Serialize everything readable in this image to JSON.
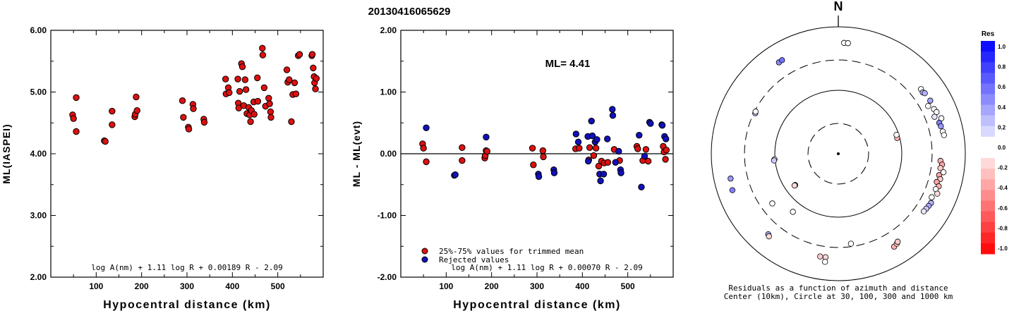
{
  "title": "20130416065629",
  "colors": {
    "red": "#dd1111",
    "blue": "#1111bb",
    "axis": "#000000"
  },
  "chart_data": [
    {
      "type": "scatter",
      "ylabel": "ML(IASPEI)",
      "xlabel": "Hypocentral distance (km)",
      "xlim": [
        0,
        600
      ],
      "ylim": [
        2.0,
        6.0
      ],
      "x_ticks": [
        100,
        200,
        300,
        400,
        500
      ],
      "y_ticks": [
        "2.00",
        "3.00",
        "4.00",
        "5.00",
        "6.00"
      ],
      "formula": "log A(nm) + 1.11 log R + 0.00189 R - 2.09",
      "series": [
        {
          "color": "red",
          "points": [
            [
              48,
              4.63
            ],
            [
              50,
              4.57
            ],
            [
              56,
              4.91
            ],
            [
              56,
              4.36
            ],
            [
              118,
              4.21
            ],
            [
              120,
              4.2
            ],
            [
              135,
              4.69
            ],
            [
              135,
              4.47
            ],
            [
              185,
              4.6
            ],
            [
              186,
              4.64
            ],
            [
              188,
              4.92
            ],
            [
              190,
              4.7
            ],
            [
              290,
              4.86
            ],
            [
              292,
              4.59
            ],
            [
              303,
              4.43
            ],
            [
              304,
              4.4
            ],
            [
              313,
              4.8
            ],
            [
              314,
              4.73
            ],
            [
              337,
              4.56
            ],
            [
              338,
              4.51
            ],
            [
              385,
              5.21
            ],
            [
              386,
              4.97
            ],
            [
              391,
              5.07
            ],
            [
              393,
              4.99
            ],
            [
              412,
              5.21
            ],
            [
              413,
              4.82
            ],
            [
              414,
              4.74
            ],
            [
              416,
              5.01
            ],
            [
              420,
              5.46
            ],
            [
              422,
              5.41
            ],
            [
              425,
              4.78
            ],
            [
              428,
              5.2
            ],
            [
              430,
              5.04
            ],
            [
              432,
              4.65
            ],
            [
              436,
              4.75
            ],
            [
              438,
              4.63
            ],
            [
              440,
              4.52
            ],
            [
              442,
              4.7
            ],
            [
              447,
              4.84
            ],
            [
              448,
              4.64
            ],
            [
              455,
              5.23
            ],
            [
              456,
              4.85
            ],
            [
              466,
              5.71
            ],
            [
              467,
              5.6
            ],
            [
              470,
              5.07
            ],
            [
              473,
              4.77
            ],
            [
              480,
              4.9
            ],
            [
              482,
              4.81
            ],
            [
              484,
              4.68
            ],
            [
              485,
              4.59
            ],
            [
              520,
              5.36
            ],
            [
              522,
              5.16
            ],
            [
              525,
              5.2
            ],
            [
              530,
              4.52
            ],
            [
              533,
              4.96
            ],
            [
              537,
              5.15
            ],
            [
              540,
              4.97
            ],
            [
              545,
              5.59
            ],
            [
              548,
              5.61
            ],
            [
              575,
              5.59
            ],
            [
              576,
              5.61
            ],
            [
              578,
              5.39
            ],
            [
              580,
              5.25
            ],
            [
              581,
              5.15
            ],
            [
              583,
              5.05
            ],
            [
              585,
              5.22
            ]
          ]
        }
      ]
    },
    {
      "type": "scatter",
      "ylabel": "ML - ML(evt)",
      "xlabel": "Hypocentral distance (km)",
      "xlim": [
        0,
        600
      ],
      "ylim": [
        -2.0,
        2.0
      ],
      "x_ticks": [
        100,
        200,
        300,
        400,
        500
      ],
      "y_ticks": [
        "-2.00",
        "-1.00",
        "0.00",
        "1.00",
        "2.00"
      ],
      "annotation": "ML=  4.41",
      "legend": [
        {
          "color": "red",
          "label": "25%-75% values for trimmed mean"
        },
        {
          "color": "blue",
          "label": "Rejected values"
        }
      ],
      "legend_position": "bottom-left",
      "formula": "log A(nm) + 1.11 log R + 0.00070 R - 2.09",
      "series": [
        {
          "color": "red",
          "points": [
            [
              48,
              0.16
            ],
            [
              50,
              0.09
            ],
            [
              56,
              -0.13
            ],
            [
              135,
              0.1
            ],
            [
              135,
              -0.11
            ],
            [
              185,
              -0.07
            ],
            [
              186,
              -0.03
            ],
            [
              188,
              0.05
            ],
            [
              190,
              0.04
            ],
            [
              290,
              0.09
            ],
            [
              292,
              -0.18
            ],
            [
              313,
              0.05
            ],
            [
              314,
              -0.05
            ],
            [
              385,
              0.08
            ],
            [
              393,
              0.09
            ],
            [
              414,
              -0.1
            ],
            [
              416,
              0.1
            ],
            [
              425,
              -0.03
            ],
            [
              430,
              0.09
            ],
            [
              436,
              -0.2
            ],
            [
              442,
              -0.12
            ],
            [
              448,
              -0.15
            ],
            [
              456,
              -0.14
            ],
            [
              470,
              0.07
            ],
            [
              482,
              -0.11
            ],
            [
              520,
              0.12
            ],
            [
              522,
              0.08
            ],
            [
              533,
              -0.11
            ],
            [
              540,
              0.07
            ],
            [
              545,
              -0.12
            ],
            [
              578,
              0.12
            ],
            [
              580,
              0.03
            ],
            [
              583,
              -0.09
            ],
            [
              585,
              0.06
            ]
          ]
        },
        {
          "color": "blue",
          "points": [
            [
              56,
              0.42
            ],
            [
              118,
              -0.35
            ],
            [
              120,
              -0.34
            ],
            [
              188,
              0.27
            ],
            [
              303,
              -0.33
            ],
            [
              304,
              -0.37
            ],
            [
              337,
              -0.26
            ],
            [
              338,
              -0.31
            ],
            [
              386,
              0.32
            ],
            [
              391,
              0.19
            ],
            [
              412,
              0.28
            ],
            [
              413,
              -0.12
            ],
            [
              420,
              0.53
            ],
            [
              422,
              0.29
            ],
            [
              428,
              0.19
            ],
            [
              432,
              0.23
            ],
            [
              438,
              -0.33
            ],
            [
              440,
              -0.44
            ],
            [
              447,
              -0.33
            ],
            [
              455,
              0.24
            ],
            [
              466,
              0.72
            ],
            [
              467,
              0.62
            ],
            [
              473,
              -0.14
            ],
            [
              480,
              0.04
            ],
            [
              484,
              -0.26
            ],
            [
              485,
              -0.31
            ],
            [
              525,
              0.3
            ],
            [
              530,
              -0.54
            ],
            [
              537,
              -0.04
            ],
            [
              548,
              0.51
            ],
            [
              550,
              0.49
            ],
            [
              575,
              0.47
            ],
            [
              576,
              0.46
            ],
            [
              581,
              0.28
            ],
            [
              584,
              0.24
            ]
          ]
        }
      ]
    },
    {
      "type": "scatter",
      "subtype": "polar",
      "north_label": "N",
      "caption_line1": "Residuals as a function of azimuth and distance",
      "caption_line2": "Center (10km), Circle at 30, 100, 300 and 1000 km",
      "rings_km": [
        30,
        100,
        300,
        1000
      ],
      "colorbar_title": "Res",
      "colorbar_ticks": [
        "1.0",
        "0.8",
        "0.6",
        "0.4",
        "0.2",
        "0.0",
        "-0.2",
        "-0.4",
        "-0.6",
        "-0.8",
        "-1.0"
      ],
      "points": [
        {
          "az": 3,
          "dist": 560,
          "res": 0.05
        },
        {
          "az": 5,
          "dist": 560,
          "res": 0.02
        },
        {
          "az": 327,
          "dist": 520,
          "res": 0.45
        },
        {
          "az": 329,
          "dist": 525,
          "res": 0.55
        },
        {
          "az": 296,
          "dist": 285,
          "res": 0.25
        },
        {
          "az": 297,
          "dist": 290,
          "res": 0.02
        },
        {
          "az": 265,
          "dist": 102,
          "res": 0.05
        },
        {
          "az": 264,
          "dist": 104,
          "res": 0.2
        },
        {
          "az": 234,
          "dist": 69,
          "res": 0.35
        },
        {
          "az": 234,
          "dist": 71,
          "res": -0.15
        },
        {
          "az": 257,
          "dist": 550,
          "res": 0.4
        },
        {
          "az": 251,
          "dist": 580,
          "res": 0.5
        },
        {
          "az": 233,
          "dist": 200,
          "res": 0.02
        },
        {
          "az": 218,
          "dist": 145,
          "res": 0.05
        },
        {
          "az": 221,
          "dist": 480,
          "res": 0.35
        },
        {
          "az": 220,
          "dist": 500,
          "res": -0.15
        },
        {
          "az": 190,
          "dist": 440,
          "res": -0.2
        },
        {
          "az": 187,
          "dist": 440,
          "res": -0.15
        },
        {
          "az": 187,
          "dist": 520,
          "res": -0.05
        },
        {
          "az": 172,
          "dist": 270,
          "res": 0.02
        },
        {
          "az": 149,
          "dist": 510,
          "res": -0.3
        },
        {
          "az": 147,
          "dist": 490,
          "res": -0.25
        },
        {
          "az": 146,
          "dist": 470,
          "res": -0.2
        },
        {
          "az": 75,
          "dist": 91,
          "res": -0.3
        },
        {
          "az": 72,
          "dist": 92,
          "res": 0.05
        },
        {
          "az": 52,
          "dist": 450,
          "res": 0.05
        },
        {
          "az": 54,
          "dist": 440,
          "res": 0.3
        },
        {
          "az": 55,
          "dist": 460,
          "res": 0.3
        },
        {
          "az": 60,
          "dist": 470,
          "res": 0.35
        },
        {
          "az": 62,
          "dist": 400,
          "res": 0.02
        },
        {
          "az": 65,
          "dist": 460,
          "res": 0.05
        },
        {
          "az": 67,
          "dist": 480,
          "res": -0.05
        },
        {
          "az": 69,
          "dist": 420,
          "res": 0.1
        },
        {
          "az": 71,
          "dist": 520,
          "res": 0.05
        },
        {
          "az": 73,
          "dist": 460,
          "res": 0.5
        },
        {
          "az": 75,
          "dist": 470,
          "res": 0.4
        },
        {
          "az": 78,
          "dist": 480,
          "res": 0.02
        },
        {
          "az": 80,
          "dist": 490,
          "res": 0.05
        },
        {
          "az": 94,
          "dist": 410,
          "res": -0.3
        },
        {
          "az": 96,
          "dist": 440,
          "res": -0.35
        },
        {
          "az": 98,
          "dist": 420,
          "res": -0.2
        },
        {
          "az": 100,
          "dist": 480,
          "res": -0.05
        },
        {
          "az": 102,
          "dist": 420,
          "res": -0.35
        },
        {
          "az": 104,
          "dist": 450,
          "res": -0.2
        },
        {
          "az": 106,
          "dist": 410,
          "res": -0.35
        },
        {
          "az": 108,
          "dist": 460,
          "res": -0.3
        },
        {
          "az": 110,
          "dist": 430,
          "res": -0.05
        },
        {
          "az": 112,
          "dist": 480,
          "res": -0.15
        },
        {
          "az": 115,
          "dist": 420,
          "res": 0.02
        },
        {
          "az": 118,
          "dist": 450,
          "res": 0.3
        },
        {
          "az": 120,
          "dist": 440,
          "res": 0.35
        },
        {
          "az": 122,
          "dist": 430,
          "res": 0.2
        },
        {
          "az": 124,
          "dist": 420,
          "res": 0.1
        }
      ]
    }
  ]
}
